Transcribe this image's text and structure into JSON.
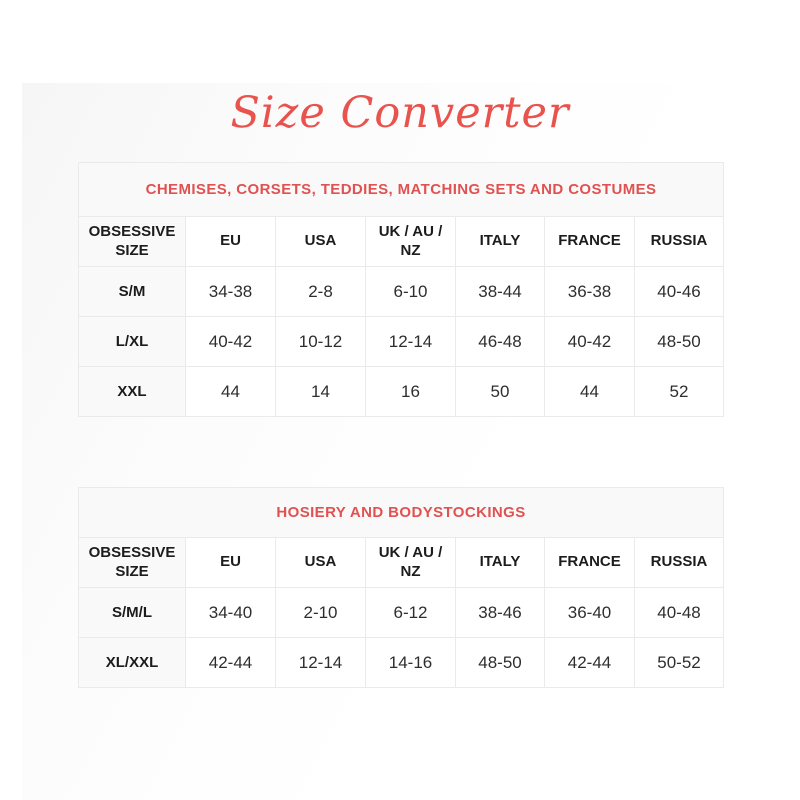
{
  "page": {
    "title": "Size Converter"
  },
  "colors": {
    "accent_red": "#e05251",
    "script_title_red": "#e8534e",
    "table_border": "#e0e0e0",
    "shaded_cell_bg": "#faf9f9",
    "header_text": "#1c1c1c",
    "value_text": "#2e2e2e"
  },
  "tables": [
    {
      "caption": "CHEMISES, CORSETS, TEDDIES, MATCHING SETS AND COSTUMES",
      "columns": [
        "OBSESSIVE SIZE",
        "EU",
        "USA",
        "UK / AU / NZ",
        "ITALY",
        "FRANCE",
        "RUSSIA"
      ],
      "rows": [
        [
          "S/M",
          "34-38",
          "2-8",
          "6-10",
          "38-44",
          "36-38",
          "40-46"
        ],
        [
          "L/XL",
          "40-42",
          "10-12",
          "12-14",
          "46-48",
          "40-42",
          "48-50"
        ],
        [
          "XXL",
          "44",
          "14",
          "16",
          "50",
          "44",
          "52"
        ]
      ]
    },
    {
      "caption": "HOSIERY AND BODYSTOCKINGS",
      "columns": [
        "OBSESSIVE SIZE",
        "EU",
        "USA",
        "UK / AU / NZ",
        "ITALY",
        "FRANCE",
        "RUSSIA"
      ],
      "rows": [
        [
          "S/M/L",
          "34-40",
          "2-10",
          "6-12",
          "38-46",
          "36-40",
          "40-48"
        ],
        [
          "XL/XXL",
          "42-44",
          "12-14",
          "14-16",
          "48-50",
          "42-44",
          "50-52"
        ]
      ]
    }
  ]
}
